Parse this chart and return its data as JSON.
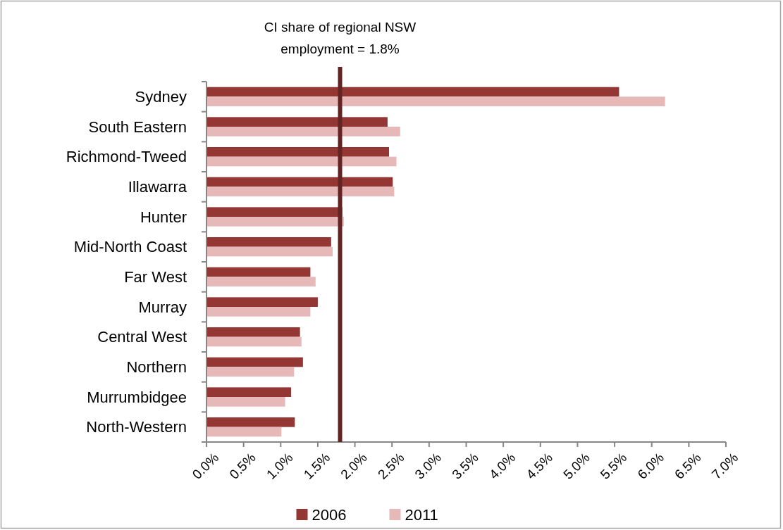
{
  "chart_data": {
    "type": "bar",
    "orientation": "horizontal",
    "categories": [
      "Sydney",
      "South Eastern",
      "Richmond-Tweed",
      "Illawarra",
      "Hunter",
      "Mid-North Coast",
      "Far West",
      "Murray",
      "Central West",
      "Northern",
      "Murrumbidgee",
      "North-Western"
    ],
    "series": [
      {
        "name": "2006",
        "color": "#943634",
        "values": [
          5.56,
          2.44,
          2.46,
          2.51,
          1.83,
          1.68,
          1.4,
          1.5,
          1.26,
          1.3,
          1.14,
          1.19
        ]
      },
      {
        "name": "2011",
        "color": "#e6b9b8",
        "values": [
          6.18,
          2.61,
          2.56,
          2.53,
          1.85,
          1.7,
          1.47,
          1.4,
          1.28,
          1.18,
          1.06,
          1.01
        ]
      }
    ],
    "xlim": [
      0,
      7
    ],
    "xticks": [
      {
        "value": 0,
        "label": "0.0%"
      },
      {
        "value": 0.5,
        "label": "0.5%"
      },
      {
        "value": 1,
        "label": "1.0%"
      },
      {
        "value": 1.5,
        "label": "1.5%"
      },
      {
        "value": 2,
        "label": "2.0%"
      },
      {
        "value": 2.5,
        "label": "2.5%"
      },
      {
        "value": 3,
        "label": "3.0%"
      },
      {
        "value": 3.5,
        "label": "3.5%"
      },
      {
        "value": 4,
        "label": "4.0%"
      },
      {
        "value": 4.5,
        "label": "4.5%"
      },
      {
        "value": 5,
        "label": "5.0%"
      },
      {
        "value": 5.5,
        "label": "5.5%"
      },
      {
        "value": 6,
        "label": "6.0%"
      },
      {
        "value": 6.5,
        "label": "6.5%"
      },
      {
        "value": 7,
        "label": "7.0%"
      }
    ],
    "ref_lines": [
      {
        "axis": "x",
        "value": 1.8,
        "label": "CI share of regional NSW employment = 1.8%",
        "color": "#632523"
      }
    ],
    "legend": "bottom"
  }
}
